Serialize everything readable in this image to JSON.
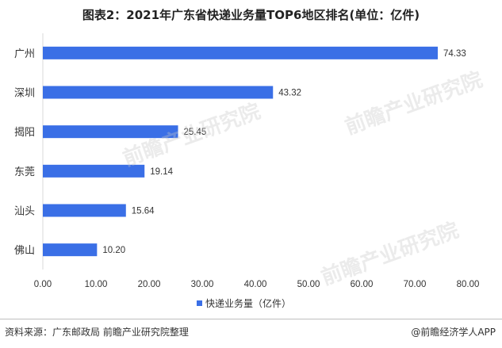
{
  "chart_data": {
    "type": "bar",
    "orientation": "horizontal",
    "title": "图表2：2021年广东省快递业务量TOP6地区排名(单位：亿件)",
    "categories": [
      "广州",
      "深圳",
      "揭阳",
      "东莞",
      "汕头",
      "佛山"
    ],
    "series": [
      {
        "name": "快递业务量（亿件）",
        "values": [
          74.33,
          43.32,
          25.45,
          19.14,
          15.64,
          10.2
        ],
        "color": "#3a6fe6"
      }
    ],
    "data_labels": [
      "74.33",
      "43.32",
      "25.45",
      "19.14",
      "15.64",
      "10.20"
    ],
    "xlim": [
      0,
      80
    ],
    "xticks": [
      "0.00",
      "10.00",
      "20.00",
      "30.00",
      "40.00",
      "50.00",
      "60.00",
      "70.00",
      "80.00"
    ],
    "grid": false,
    "legend_position": "bottom"
  },
  "footer": {
    "source": "资料来源：广东邮政局 前瞻产业研究院整理",
    "brand": "@前瞻经济学人APP"
  },
  "watermark": "前瞻产业研究院"
}
